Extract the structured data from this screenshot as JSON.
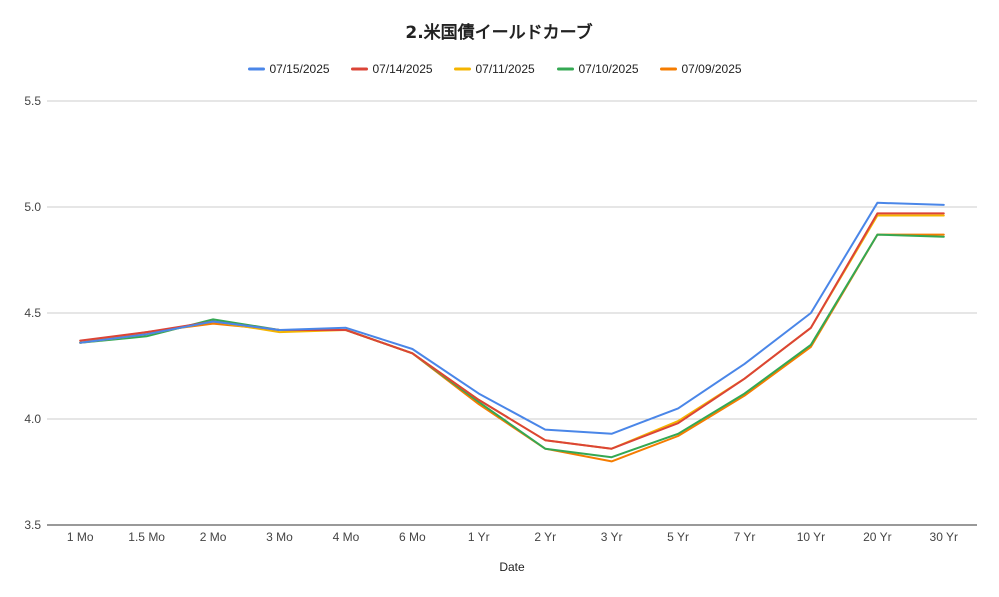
{
  "chart_data": {
    "type": "line",
    "title": "2.米国債イールドカーブ",
    "xlabel": "Date",
    "ylabel": "",
    "ylim": [
      3.5,
      5.5
    ],
    "yticks": [
      "3.5",
      "4.0",
      "4.5",
      "5.0",
      "5.5"
    ],
    "grid": true,
    "legend_position": "top",
    "categories": [
      "1 Mo",
      "1.5 Mo",
      "2 Mo",
      "3 Mo",
      "4 Mo",
      "6 Mo",
      "1 Yr",
      "2 Yr",
      "3 Yr",
      "5 Yr",
      "7 Yr",
      "10 Yr",
      "20 Yr",
      "30 Yr"
    ],
    "series": [
      {
        "name": "07/15/2025",
        "color": "#4a86e8",
        "values": [
          4.36,
          4.4,
          4.46,
          4.42,
          4.43,
          4.33,
          4.12,
          3.95,
          3.93,
          4.05,
          4.26,
          4.5,
          5.02,
          5.01
        ]
      },
      {
        "name": "07/14/2025",
        "color": "#db4437",
        "values": [
          4.37,
          4.41,
          4.46,
          4.42,
          4.42,
          4.31,
          4.09,
          3.9,
          3.86,
          3.98,
          4.19,
          4.43,
          4.97,
          4.97
        ]
      },
      {
        "name": "07/11/2025",
        "color": "#f4b400",
        "values": [
          4.36,
          4.4,
          4.46,
          4.41,
          4.42,
          4.31,
          4.09,
          3.9,
          3.86,
          3.99,
          4.19,
          4.43,
          4.96,
          4.96
        ]
      },
      {
        "name": "07/10/2025",
        "color": "#34a853",
        "values": [
          4.36,
          4.39,
          4.47,
          4.42,
          4.42,
          4.31,
          4.08,
          3.86,
          3.82,
          3.93,
          4.12,
          4.35,
          4.87,
          4.86
        ]
      },
      {
        "name": "07/09/2025",
        "color": "#f57c00",
        "values": [
          4.36,
          4.41,
          4.45,
          4.42,
          4.42,
          4.31,
          4.07,
          3.86,
          3.8,
          3.92,
          4.11,
          4.34,
          4.87,
          4.87
        ]
      }
    ]
  }
}
